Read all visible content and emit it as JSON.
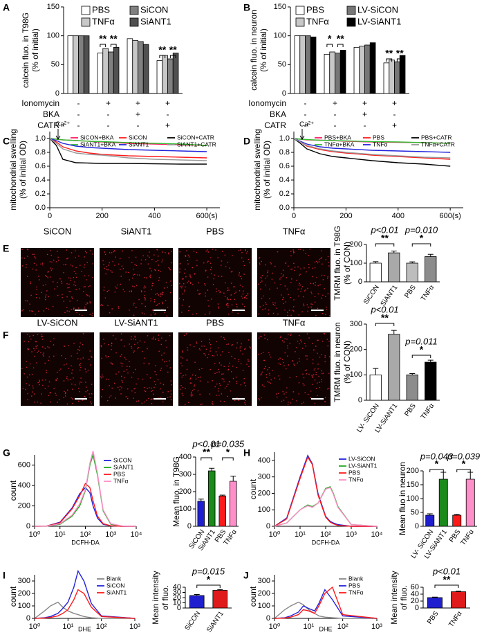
{
  "chart_data": [
    {
      "type": "bar",
      "panel": "A",
      "ylabel": [
        "calcein fluo. in T98G",
        "(% of initial)"
      ],
      "ylim": [
        0,
        150
      ],
      "yticks": [
        0,
        50,
        100,
        150
      ],
      "series": [
        {
          "name": "PBS",
          "color": "#ffffff",
          "values": [
            100,
            70,
            95,
            57
          ]
        },
        {
          "name": "TNFα",
          "color": "#c8c8c8",
          "values": [
            100,
            78,
            92,
            66
          ]
        },
        {
          "name": "SiCON",
          "color": "#808080",
          "values": [
            100,
            72,
            90,
            60
          ]
        },
        {
          "name": "SiANT1",
          "color": "#505050",
          "values": [
            100,
            80,
            85,
            70
          ]
        }
      ],
      "conditions": [
        {
          "name": "Ionomycin",
          "values": [
            "-",
            "+",
            "+",
            "+"
          ]
        },
        {
          "name": "BKA",
          "values": [
            "-",
            "-",
            "+",
            "-"
          ]
        },
        {
          "name": "CATR",
          "values": [
            "-",
            "-",
            "-",
            "+"
          ]
        }
      ],
      "annotations": [
        "**",
        "**",
        "**",
        "**"
      ]
    },
    {
      "type": "bar",
      "panel": "B",
      "ylabel": [
        "calcein fluo. in neuron",
        "(% of initial)"
      ],
      "ylim": [
        0,
        150
      ],
      "yticks": [
        0,
        50,
        100,
        150
      ],
      "series": [
        {
          "name": "PBS",
          "color": "#ffffff",
          "values": [
            100,
            68,
            80,
            53
          ]
        },
        {
          "name": "TNFα",
          "color": "#c8c8c8",
          "values": [
            100,
            72,
            82,
            58
          ]
        },
        {
          "name": "LV-SiCON",
          "color": "#777777",
          "values": [
            100,
            70,
            84,
            55
          ]
        },
        {
          "name": "LV-SiANT1",
          "color": "#000000",
          "values": [
            98,
            75,
            88,
            66
          ]
        }
      ],
      "conditions": [
        {
          "name": "Ionomycin",
          "values": [
            "-",
            "+",
            "+",
            "+"
          ]
        },
        {
          "name": "BKA",
          "values": [
            "-",
            "-",
            "+",
            "-"
          ]
        },
        {
          "name": "CATR",
          "values": [
            "-",
            "-",
            "-",
            "+"
          ]
        }
      ],
      "annotations": [
        "*",
        "**",
        "**",
        "**"
      ]
    },
    {
      "type": "line",
      "panel": "C",
      "ylabel": [
        "mitochondrial swelling",
        "(% of initial OD)"
      ],
      "annotation": "Ca²⁺",
      "xlim": [
        0,
        650
      ],
      "xticks": [
        0,
        200,
        400,
        {
          "value": 600,
          "label": "600(s)"
        }
      ],
      "ylim": [
        0,
        1.1
      ],
      "yticks": [
        {
          "value": 0,
          "label": "0.0"
        },
        0.2,
        0.4,
        0.6,
        0.8,
        {
          "value": 1,
          "label": "1.0"
        }
      ],
      "x": [
        0,
        25,
        50,
        100,
        150,
        200,
        300,
        400,
        500,
        600
      ],
      "series": [
        {
          "name": "SiCON+BKA",
          "color": "#ff1a5e",
          "values": [
            1,
            0.99,
            0.98,
            0.97,
            0.96,
            0.95,
            0.93,
            0.92,
            0.91,
            0.9
          ]
        },
        {
          "name": "SiCON",
          "color": "#ff1a1a",
          "values": [
            1,
            0.95,
            0.88,
            0.82,
            0.79,
            0.77,
            0.75,
            0.74,
            0.73,
            0.72
          ]
        },
        {
          "name": "SiCON+CATR",
          "color": "#000000",
          "values": [
            1,
            0.9,
            0.7,
            0.65,
            0.645,
            0.64,
            0.64,
            0.635,
            0.63,
            0.63
          ]
        },
        {
          "name": "SiANT1+BKA",
          "color": "#33bb33",
          "values": [
            1,
            0.99,
            0.98,
            0.97,
            0.96,
            0.955,
            0.94,
            0.93,
            0.92,
            0.9
          ]
        },
        {
          "name": "SiANT1",
          "color": "#2222dd",
          "values": [
            1,
            0.97,
            0.93,
            0.89,
            0.87,
            0.86,
            0.84,
            0.83,
            0.82,
            0.81
          ]
        },
        {
          "name": "SiANT1+CATR",
          "color": "#999999",
          "values": [
            1,
            0.93,
            0.85,
            0.79,
            0.77,
            0.76,
            0.72,
            0.7,
            0.69,
            0.68
          ]
        }
      ]
    },
    {
      "type": "line",
      "panel": "D",
      "ylabel": [
        "mitochondrial swelling",
        "(% of initial OD)"
      ],
      "annotation": "Ca²⁺",
      "xlim": [
        0,
        650
      ],
      "xticks": [
        0,
        200,
        400,
        {
          "value": 600,
          "label": "600(s)"
        }
      ],
      "ylim": [
        0,
        1.1
      ],
      "yticks": [
        {
          "value": 0,
          "label": "0.0"
        },
        0.2,
        0.4,
        0.6,
        0.8,
        {
          "value": 1,
          "label": "1.0"
        }
      ],
      "x": [
        0,
        25,
        50,
        100,
        150,
        200,
        300,
        400,
        500,
        600
      ],
      "series": [
        {
          "name": "PBS+BKA",
          "color": "#ff1a5e",
          "values": [
            1,
            0.99,
            0.98,
            0.975,
            0.97,
            0.96,
            0.95,
            0.945,
            0.94,
            0.93
          ]
        },
        {
          "name": "PBS",
          "color": "#ff1a1a",
          "values": [
            1,
            0.95,
            0.89,
            0.84,
            0.81,
            0.79,
            0.76,
            0.74,
            0.72,
            0.7
          ]
        },
        {
          "name": "PBS+CATR",
          "color": "#000000",
          "values": [
            1,
            0.93,
            0.85,
            0.78,
            0.74,
            0.72,
            0.68,
            0.65,
            0.63,
            0.6
          ]
        },
        {
          "name": "TNFα+BKA",
          "color": "#33bb33",
          "values": [
            1,
            0.99,
            0.985,
            0.975,
            0.97,
            0.965,
            0.955,
            0.95,
            0.94,
            0.93
          ]
        },
        {
          "name": "TNFα",
          "color": "#2222dd",
          "values": [
            1,
            0.96,
            0.92,
            0.88,
            0.86,
            0.85,
            0.83,
            0.82,
            0.81,
            0.8
          ]
        },
        {
          "name": "TNFα+CATR",
          "color": "#999999",
          "values": [
            1,
            0.95,
            0.9,
            0.85,
            0.82,
            0.8,
            0.77,
            0.75,
            0.73,
            0.72
          ]
        }
      ]
    },
    {
      "type": "bar",
      "panel": "E",
      "images": [
        "SiCON",
        "SiANT1",
        "PBS",
        "TNFα"
      ],
      "ylabel": [
        "TMRM fluo. in T98G",
        "(% of CON)"
      ],
      "ylim": [
        0,
        200
      ],
      "yticks": [
        0,
        100,
        200
      ],
      "categories": [
        "SiCON",
        "SiANT1",
        "PBS",
        "TNFα"
      ],
      "values": [
        100,
        155,
        100,
        135
      ],
      "errors": [
        8,
        10,
        7,
        12
      ],
      "colors": [
        "#ffffff",
        "#a9a9a9",
        "#bdbdbd",
        "#8c8c8c"
      ],
      "annotations": [
        "p<0.01",
        "**",
        "p=0.010",
        "*"
      ]
    },
    {
      "type": "bar",
      "panel": "F",
      "images": [
        "LV-SiCON",
        "LV-SiANT1",
        "PBS",
        "TNFα"
      ],
      "ylabel": [
        "TMRM fluo. in neuron",
        "(% of CON)"
      ],
      "ylim": [
        0,
        300
      ],
      "yticks": [
        0,
        100,
        200,
        300
      ],
      "categories": [
        "LV- SiCON",
        "LV-SiANT1",
        "PBS",
        "TNFα"
      ],
      "values": [
        100,
        260,
        100,
        150
      ],
      "errors": [
        25,
        15,
        5,
        8
      ],
      "colors": [
        "#ffffff",
        "#a9a9a9",
        "#8c8c8c",
        "#000000"
      ],
      "annotations": [
        "p<0.01",
        "**",
        "p=0.011",
        "*"
      ]
    },
    {
      "type": "line",
      "panel": "G",
      "xscale": "log",
      "xlabel": "DCFH-DA",
      "ylabel": [
        "count"
      ],
      "xlim": [
        1,
        10000
      ],
      "xticks": [
        {
          "value": 1,
          "label": "10⁰"
        },
        {
          "value": 10,
          "label": "10¹"
        },
        {
          "value": 100,
          "label": "10²"
        },
        {
          "value": 1000,
          "label": "10³"
        },
        {
          "value": 10000,
          "label": "10⁴"
        }
      ],
      "ylim": [
        0,
        700
      ],
      "yticks": [
        0,
        200,
        400,
        600
      ],
      "x": [
        1,
        3,
        10,
        30,
        60,
        100,
        150,
        200,
        300,
        500,
        1000,
        3000,
        10000
      ],
      "series": [
        {
          "name": "SiCON",
          "color": "#2222dd",
          "values": [
            0,
            2,
            40,
            180,
            320,
            380,
            330,
            200,
            80,
            20,
            5,
            0,
            0
          ]
        },
        {
          "name": "SiANT1",
          "color": "#22aa22",
          "values": [
            0,
            1,
            20,
            100,
            200,
            350,
            600,
            700,
            500,
            150,
            20,
            2,
            0
          ]
        },
        {
          "name": "PBS",
          "color": "#ff1a1a",
          "values": [
            0,
            2,
            35,
            170,
            300,
            420,
            380,
            250,
            100,
            25,
            5,
            0,
            0
          ]
        },
        {
          "name": "TNFα",
          "color": "#ff8fc8",
          "values": [
            0,
            1,
            25,
            110,
            220,
            360,
            620,
            740,
            520,
            160,
            25,
            2,
            0
          ]
        }
      ]
    },
    {
      "type": "bar",
      "ylabel": [
        "Mean fluo. in T98G"
      ],
      "ylim": [
        0,
        400
      ],
      "yticks": [
        0,
        100,
        200,
        300,
        400
      ],
      "categories": [
        "SiCON",
        "SiANT1",
        "PBS",
        "TNFα"
      ],
      "values": [
        145,
        320,
        175,
        260
      ],
      "errors": [
        12,
        15,
        5,
        30
      ],
      "colors": [
        "#1f1fd0",
        "#1a8a1a",
        "#ff1a1a",
        "#ff8fc8"
      ],
      "annotations": [
        "p<0.01",
        "**",
        "p=0.035",
        "*"
      ]
    },
    {
      "type": "line",
      "panel": "H",
      "xscale": "log",
      "xlabel": "DCFH-DA",
      "ylabel": [
        "count"
      ],
      "xlim": [
        1,
        10000
      ],
      "xticks": [
        {
          "value": 1,
          "label": "10⁰"
        },
        {
          "value": 10,
          "label": "10¹"
        },
        {
          "value": 100,
          "label": "10²"
        },
        {
          "value": 1000,
          "label": "10³"
        },
        {
          "value": 10000,
          "label": "10⁴"
        }
      ],
      "ylim": [
        0,
        450
      ],
      "yticks": [
        0,
        100,
        200,
        300,
        400
      ],
      "x": [
        1,
        3,
        10,
        20,
        30,
        50,
        100,
        150,
        200,
        300,
        1000,
        10000
      ],
      "series": [
        {
          "name": "LV-SiCON",
          "color": "#2222dd",
          "values": [
            0,
            50,
            300,
            430,
            380,
            200,
            60,
            30,
            20,
            10,
            0,
            0
          ]
        },
        {
          "name": "LV-SiANT1",
          "color": "#22aa22",
          "values": [
            0,
            20,
            100,
            130,
            120,
            140,
            230,
            240,
            200,
            120,
            10,
            0
          ]
        },
        {
          "name": "PBS",
          "color": "#ff1a1a",
          "values": [
            0,
            45,
            290,
            420,
            375,
            190,
            55,
            25,
            15,
            5,
            0,
            0
          ]
        },
        {
          "name": "TNFα",
          "color": "#ff8fc8",
          "values": [
            0,
            20,
            100,
            125,
            115,
            140,
            225,
            235,
            195,
            115,
            10,
            0
          ]
        }
      ]
    },
    {
      "type": "bar",
      "ylabel": [
        "Mean fluo in neuron"
      ],
      "ylim": [
        0,
        200
      ],
      "yticks": [
        0,
        50,
        100,
        150,
        200
      ],
      "categories": [
        "LV- SiCON",
        "LV-SiANT1",
        "PBS",
        "TNFα"
      ],
      "values": [
        40,
        170,
        40,
        170
      ],
      "errors": [
        5,
        25,
        3,
        25
      ],
      "colors": [
        "#1f1fd0",
        "#1a8a1a",
        "#ff1a1a",
        "#ff8fc8"
      ],
      "annotations": [
        "p=0.043",
        "*",
        "p=0.039",
        "*"
      ]
    },
    {
      "type": "line",
      "panel": "I",
      "xscale": "log",
      "xlabel": "DHE",
      "ylabel": [
        "count"
      ],
      "xlim": [
        1,
        1000
      ],
      "xticks": [
        {
          "value": 1,
          "label": "10⁰"
        },
        {
          "value": 10,
          "label": "10¹"
        },
        {
          "value": 100,
          "label": "10²"
        },
        {
          "value": 1000,
          "label": "10³"
        }
      ],
      "ylim": [
        0,
        350
      ],
      "yticks": [
        0,
        100,
        200,
        300
      ],
      "x": [
        1,
        2,
        3,
        5,
        7,
        10,
        15,
        20,
        30,
        50,
        100,
        1000
      ],
      "series": [
        {
          "name": "Blank",
          "color": "#888888",
          "values": [
            0,
            60,
            100,
            130,
            90,
            60,
            40,
            30,
            15,
            5,
            0,
            0
          ]
        },
        {
          "name": "SiCON",
          "color": "#2222dd",
          "values": [
            0,
            5,
            15,
            40,
            80,
            130,
            250,
            380,
            300,
            120,
            20,
            0
          ]
        },
        {
          "name": "SiANT1",
          "color": "#ff1a1a",
          "values": [
            0,
            3,
            8,
            20,
            40,
            70,
            150,
            230,
            200,
            90,
            15,
            0
          ]
        }
      ]
    },
    {
      "type": "bar",
      "ylabel": [
        "Mean intensity",
        "of fluo."
      ],
      "ylim": [
        0,
        40
      ],
      "yticks": [
        0,
        10,
        20,
        30,
        40
      ],
      "categories": [
        "SiCON",
        "SiANT1"
      ],
      "values": [
        24,
        34
      ],
      "errors": [
        2,
        1.5
      ],
      "colors": [
        "#1f1fd0",
        "#e01a1a"
      ],
      "annotations": [
        "p=0.015",
        "*"
      ]
    },
    {
      "type": "line",
      "panel": "J",
      "xscale": "log",
      "xlabel": "DHE",
      "ylabel": [
        "count"
      ],
      "xlim": [
        1,
        1000
      ],
      "xticks": [
        {
          "value": 1,
          "label": "10⁰"
        },
        {
          "value": 10,
          "label": "10¹"
        },
        {
          "value": 100,
          "label": "10²"
        },
        {
          "value": 1000,
          "label": "10³"
        }
      ],
      "ylim": [
        0,
        350
      ],
      "yticks": [
        0,
        100,
        200,
        300
      ],
      "x": [
        1,
        2,
        3,
        5,
        7,
        10,
        15,
        20,
        30,
        50,
        100,
        1000
      ],
      "series": [
        {
          "name": "Blank",
          "color": "#888888",
          "values": [
            0,
            70,
            100,
            130,
            110,
            70,
            40,
            20,
            10,
            5,
            0,
            0
          ]
        },
        {
          "name": "PBS",
          "color": "#2222dd",
          "values": [
            0,
            5,
            20,
            50,
            100,
            80,
            60,
            120,
            230,
            150,
            20,
            0
          ]
        },
        {
          "name": "TNFα",
          "color": "#ff1a1a",
          "values": [
            0,
            3,
            10,
            30,
            70,
            60,
            40,
            100,
            200,
            250,
            30,
            0
          ]
        }
      ]
    },
    {
      "type": "bar",
      "ylabel": [
        "Mean intensity",
        "of fluo."
      ],
      "ylim": [
        0,
        60
      ],
      "yticks": [
        0,
        20,
        40,
        60
      ],
      "categories": [
        "PBS",
        "TNFα"
      ],
      "values": [
        30,
        47
      ],
      "errors": [
        1.5,
        2
      ],
      "colors": [
        "#1f1fd0",
        "#e01a1a"
      ],
      "annotations": [
        "p<0.01",
        "**"
      ]
    }
  ]
}
